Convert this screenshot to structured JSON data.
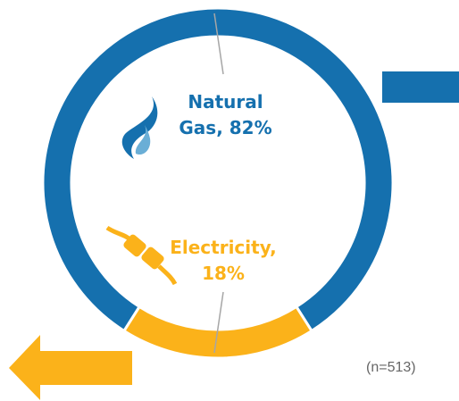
{
  "chart_data": {
    "type": "donut",
    "categories": [
      "Natural Gas",
      "Electricity"
    ],
    "values": [
      82,
      18
    ],
    "labels": [
      "Natural Gas, 82%",
      "Electricity, 18%"
    ],
    "colors": [
      "#1570ae",
      "#fbb21a"
    ],
    "note": "(n=513)"
  }
}
